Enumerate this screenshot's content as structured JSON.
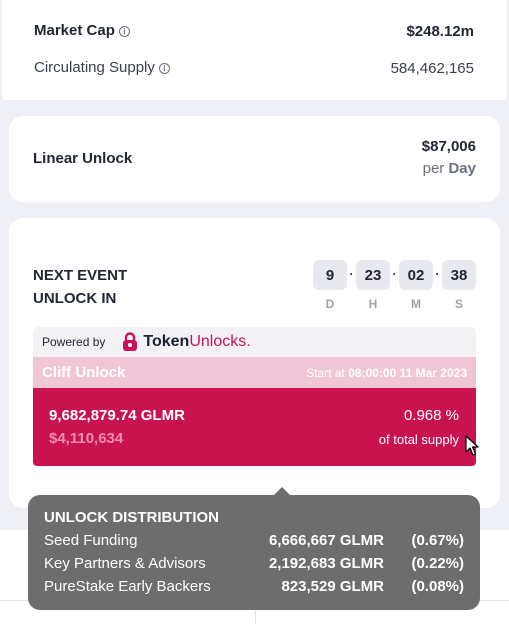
{
  "summary": {
    "market_cap_label": "Market Cap",
    "market_cap_value": "$248.12m",
    "circulating_label": "Circulating Supply",
    "circulating_value": "584,462,165"
  },
  "linear": {
    "label": "Linear Unlock",
    "amount": "$87,006",
    "per": "per",
    "period": "Day"
  },
  "event": {
    "title_line1": "NEXT EVENT",
    "title_line2": "UNLOCK IN",
    "countdown": [
      {
        "value": "9",
        "unit": "D"
      },
      {
        "value": "23",
        "unit": "H"
      },
      {
        "value": "02",
        "unit": "M"
      },
      {
        "value": "38",
        "unit": "S"
      }
    ],
    "separator": "·",
    "powered_by": "Powered by",
    "brand_main": "Token",
    "brand_accent": "Unlocks.",
    "cliff": {
      "title": "Cliff Unlock",
      "start_prefix": "Start at",
      "start_time": "08:00:00 11 Mar 2023",
      "amount": "9,682,879.74 GLMR",
      "usd": "$4,110,634",
      "percent": "0.968 %",
      "supply_label": "of total supply"
    }
  },
  "tooltip": {
    "title": "UNLOCK DISTRIBUTION",
    "rows": [
      {
        "name": "Seed Funding",
        "amount": "6,666,667 GLMR",
        "pct": "(0.67%)"
      },
      {
        "name": "Key Partners & Advisors",
        "amount": "2,192,683 GLMR",
        "pct": "(0.22%)"
      },
      {
        "name": "PureStake Early Backers",
        "amount": "823,529 GLMR",
        "pct": "(0.08%)"
      }
    ]
  },
  "colors": {
    "accent": "#c9134f",
    "accent_light": "#f0c6d6",
    "tooltip_bg": "#6d6d6d",
    "page_bg": "#eef0f6"
  }
}
